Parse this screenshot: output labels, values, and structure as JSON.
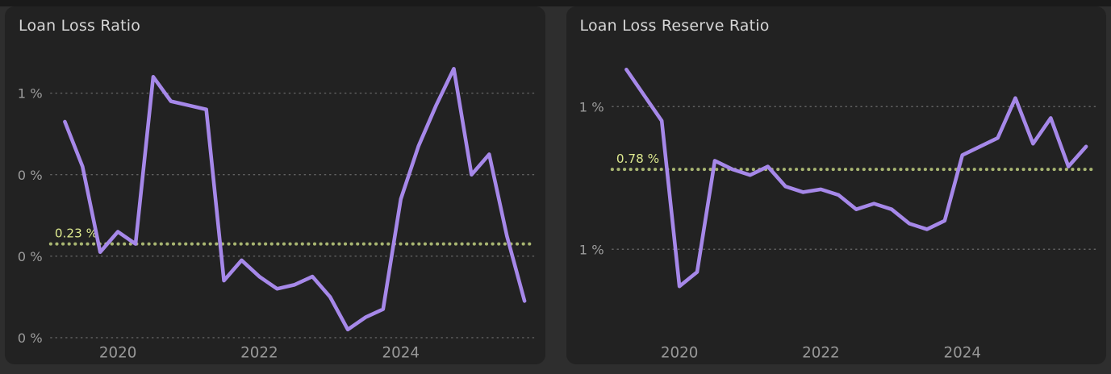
{
  "page": {
    "background": "#2e2e2e",
    "top_strip_color": "#1a1a1a",
    "card_background": "#222222"
  },
  "colors": {
    "line": "#a688e9",
    "ref_line": "#a9b672",
    "ref_label": "#dde98f",
    "grid": "#6e6e6e",
    "tick_label": "#9c9c9c",
    "x_tick_label": "#989898",
    "title": "#d6d6d6"
  },
  "chart_data": [
    {
      "type": "line",
      "title": "Loan Loss Ratio",
      "x": [
        "2019Q1",
        "2019Q2",
        "2019Q3",
        "2019Q4",
        "2020Q1",
        "2020Q2",
        "2020Q3",
        "2020Q4",
        "2021Q1",
        "2021Q2",
        "2021Q3",
        "2021Q4",
        "2022Q1",
        "2022Q2",
        "2022Q3",
        "2022Q4",
        "2023Q1",
        "2023Q2",
        "2023Q3",
        "2023Q4",
        "2024Q1",
        "2024Q2",
        "2024Q3",
        "2024Q4",
        "2025Q1",
        "2025Q2",
        "2025Q3"
      ],
      "values": [
        0.53,
        0.42,
        0.21,
        0.26,
        0.23,
        0.64,
        0.58,
        0.57,
        0.56,
        0.14,
        0.19,
        0.15,
        0.12,
        0.13,
        0.15,
        0.1,
        0.02,
        0.05,
        0.07,
        0.34,
        0.47,
        0.57,
        0.66,
        0.4,
        0.45,
        0.25,
        0.09
      ],
      "unit": "%",
      "x_numeric_start": 2019.25,
      "x_numeric_step": 0.25,
      "x_domain": [
        2019.05,
        2025.9
      ],
      "ylim": [
        0.0,
        0.686
      ],
      "y_ticks": [
        {
          "value": 0.6,
          "label": "1 %"
        },
        {
          "value": 0.4,
          "label": "0 %"
        },
        {
          "value": 0.2,
          "label": "0 %"
        },
        {
          "value": 0.0,
          "label": "0 %"
        }
      ],
      "x_ticks": [
        {
          "value": 2020,
          "label": "2020"
        },
        {
          "value": 2022,
          "label": "2022"
        },
        {
          "value": 2024,
          "label": "2024"
        }
      ],
      "reference": {
        "value": 0.23,
        "label": "0.23 %"
      },
      "grid": "dotted",
      "legend": "none"
    },
    {
      "type": "line",
      "title": "Loan Loss Reserve Ratio",
      "x": [
        "2019Q1",
        "2019Q2",
        "2019Q3",
        "2019Q4",
        "2020Q1",
        "2020Q2",
        "2020Q3",
        "2020Q4",
        "2021Q1",
        "2021Q2",
        "2021Q3",
        "2021Q4",
        "2022Q1",
        "2022Q2",
        "2022Q3",
        "2022Q4",
        "2023Q1",
        "2023Q2",
        "2023Q3",
        "2023Q4",
        "2024Q1",
        "2024Q2",
        "2024Q3",
        "2024Q4",
        "2025Q1",
        "2025Q2",
        "2025Q3"
      ],
      "values": [
        1.13,
        1.04,
        0.95,
        0.37,
        0.42,
        0.81,
        0.78,
        0.76,
        0.79,
        0.72,
        0.7,
        0.71,
        0.69,
        0.64,
        0.66,
        0.64,
        0.59,
        0.57,
        0.6,
        0.83,
        0.86,
        0.89,
        1.03,
        0.87,
        0.96,
        0.79,
        0.86
      ],
      "unit": "%",
      "x_numeric_start": 2019.25,
      "x_numeric_step": 0.25,
      "x_domain": [
        2019.05,
        2025.9
      ],
      "ylim": [
        0.19,
        1.17
      ],
      "y_ticks": [
        {
          "value": 1.0,
          "label": "1 %"
        },
        {
          "value": 0.5,
          "label": "1 %"
        }
      ],
      "x_ticks": [
        {
          "value": 2020,
          "label": "2020"
        },
        {
          "value": 2022,
          "label": "2022"
        },
        {
          "value": 2024,
          "label": "2024"
        }
      ],
      "reference": {
        "value": 0.78,
        "label": "0.78 %"
      },
      "grid": "dotted",
      "legend": "none"
    }
  ]
}
